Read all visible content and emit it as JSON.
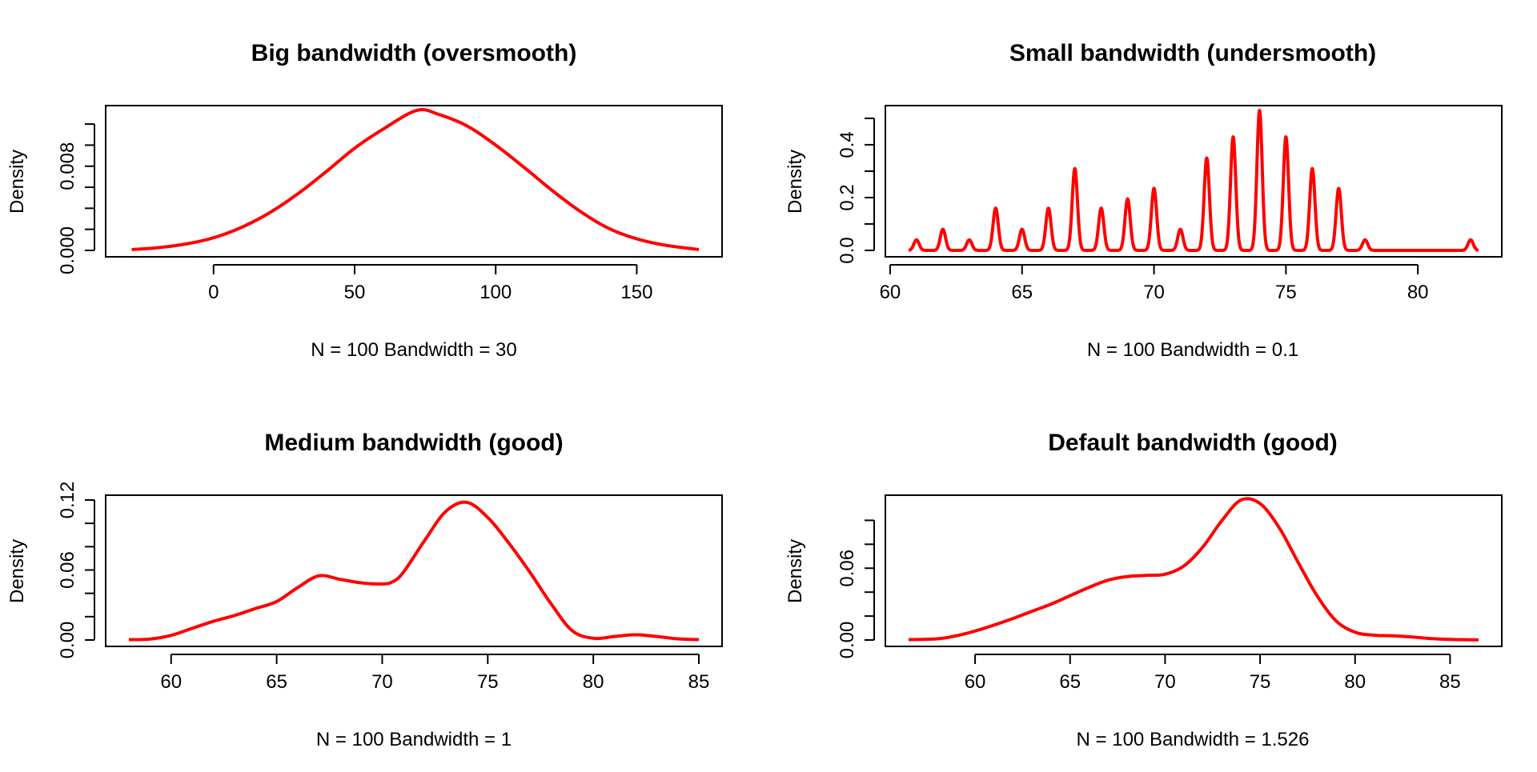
{
  "colors": {
    "curve": "#ff0000",
    "axis": "#000000",
    "background": "#ffffff"
  },
  "chart_data": [
    {
      "type": "line",
      "title": "Big bandwidth (oversmooth)",
      "subtitle": "N = 100   Bandwidth = 30",
      "xlabel": "",
      "ylabel": "Density",
      "xlim": [
        -30,
        172
      ],
      "ylim": [
        0,
        0.0133
      ],
      "xticks": [
        0,
        50,
        100,
        150
      ],
      "xtick_labels": [
        "0",
        "50",
        "100",
        "150"
      ],
      "yticks": [
        0,
        0.002,
        0.004,
        0.006,
        0.008,
        0.01,
        0.012
      ],
      "ytick_labels": [
        "0.000",
        "",
        "",
        "",
        "0.008",
        "",
        ""
      ],
      "grid": false,
      "series": [
        {
          "x": [
            -29,
            -20,
            -10,
            0,
            10,
            20,
            30,
            40,
            50,
            60,
            72,
            80,
            90,
            100,
            110,
            120,
            130,
            140,
            150,
            160,
            172
          ],
          "values": [
            8e-05,
            0.00025,
            0.0006,
            0.0012,
            0.0022,
            0.0036,
            0.0054,
            0.0075,
            0.0097,
            0.0115,
            0.0133,
            0.0129,
            0.0118,
            0.01,
            0.0079,
            0.0057,
            0.0037,
            0.0021,
            0.0011,
            0.0005,
            8e-05
          ]
        }
      ]
    },
    {
      "type": "line",
      "title": "Small bandwidth (undersmooth)",
      "subtitle": "N = 100   Bandwidth = 0.1",
      "xlabel": "",
      "ylabel": "Density",
      "xlim": [
        60.7,
        82.3
      ],
      "ylim": [
        0,
        0.53
      ],
      "xticks": [
        60,
        65,
        70,
        75,
        80
      ],
      "xtick_labels": [
        "60",
        "65",
        "70",
        "75",
        "80"
      ],
      "yticks": [
        0,
        0.1,
        0.2,
        0.3,
        0.4,
        0.5
      ],
      "ytick_labels": [
        "0.0",
        "",
        "0.2",
        "",
        "0.4",
        ""
      ],
      "grid": false,
      "kernel_bandwidth": 0.1,
      "peaks": [
        {
          "x": 61,
          "height": 0.04
        },
        {
          "x": 62,
          "height": 0.08
        },
        {
          "x": 63,
          "height": 0.04
        },
        {
          "x": 64,
          "height": 0.16
        },
        {
          "x": 65,
          "height": 0.08
        },
        {
          "x": 66,
          "height": 0.16
        },
        {
          "x": 67,
          "height": 0.31
        },
        {
          "x": 68,
          "height": 0.16
        },
        {
          "x": 69,
          "height": 0.195
        },
        {
          "x": 70,
          "height": 0.235
        },
        {
          "x": 71,
          "height": 0.08
        },
        {
          "x": 72,
          "height": 0.35
        },
        {
          "x": 73,
          "height": 0.43
        },
        {
          "x": 74,
          "height": 0.53
        },
        {
          "x": 75,
          "height": 0.43
        },
        {
          "x": 76,
          "height": 0.31
        },
        {
          "x": 77,
          "height": 0.235
        },
        {
          "x": 78,
          "height": 0.04
        },
        {
          "x": 82,
          "height": 0.04
        }
      ]
    },
    {
      "type": "line",
      "title": "Medium bandwidth (good)",
      "subtitle": "N = 100   Bandwidth = 1",
      "xlabel": "",
      "ylabel": "Density",
      "xlim": [
        58,
        85
      ],
      "ylim": [
        0,
        0.12
      ],
      "xticks": [
        60,
        65,
        70,
        75,
        80,
        85
      ],
      "xtick_labels": [
        "60",
        "65",
        "70",
        "75",
        "80",
        "85"
      ],
      "yticks": [
        0,
        0.02,
        0.04,
        0.06,
        0.08,
        0.1,
        0.12
      ],
      "ytick_labels": [
        "0.00",
        "",
        "",
        "0.06",
        "",
        "",
        "0.12"
      ],
      "grid": false,
      "series": [
        {
          "x": [
            58,
            59,
            60,
            61,
            62,
            63,
            64,
            65,
            66,
            67,
            68,
            69,
            70,
            70.5,
            71,
            72,
            73,
            74,
            75,
            76,
            77,
            78,
            79,
            80,
            81,
            82,
            83,
            84,
            85
          ],
          "values": [
            0.0003,
            0.0008,
            0.004,
            0.01,
            0.016,
            0.021,
            0.027,
            0.033,
            0.045,
            0.055,
            0.052,
            0.049,
            0.048,
            0.05,
            0.058,
            0.085,
            0.11,
            0.118,
            0.105,
            0.083,
            0.058,
            0.031,
            0.008,
            0.0015,
            0.003,
            0.0045,
            0.003,
            0.001,
            0.0003
          ]
        }
      ]
    },
    {
      "type": "line",
      "title": "Default bandwidth (good)",
      "subtitle": "N = 100   Bandwidth = 1.526",
      "xlabel": "",
      "ylabel": "Density",
      "xlim": [
        56.5,
        86.5
      ],
      "ylim": [
        0,
        0.117
      ],
      "xticks": [
        60,
        65,
        70,
        75,
        80,
        85
      ],
      "xtick_labels": [
        "60",
        "65",
        "70",
        "75",
        "80",
        "85"
      ],
      "yticks": [
        0,
        0.02,
        0.04,
        0.06,
        0.08,
        0.1
      ],
      "ytick_labels": [
        "0.00",
        "",
        "",
        "0.06",
        "",
        ""
      ],
      "grid": false,
      "series": [
        {
          "x": [
            56.5,
            58,
            59,
            60,
            61,
            62,
            63,
            64,
            65,
            66,
            67,
            68,
            69,
            70,
            71,
            72,
            73,
            74,
            75,
            76,
            77,
            78,
            79,
            80,
            81,
            82,
            83,
            84,
            85,
            86.5
          ],
          "values": [
            0.0003,
            0.001,
            0.0035,
            0.0075,
            0.0125,
            0.018,
            0.024,
            0.03,
            0.037,
            0.044,
            0.05,
            0.053,
            0.054,
            0.055,
            0.062,
            0.078,
            0.1,
            0.117,
            0.114,
            0.094,
            0.065,
            0.037,
            0.016,
            0.0065,
            0.004,
            0.0035,
            0.0025,
            0.0012,
            0.0005,
            0.0001
          ]
        }
      ]
    }
  ]
}
